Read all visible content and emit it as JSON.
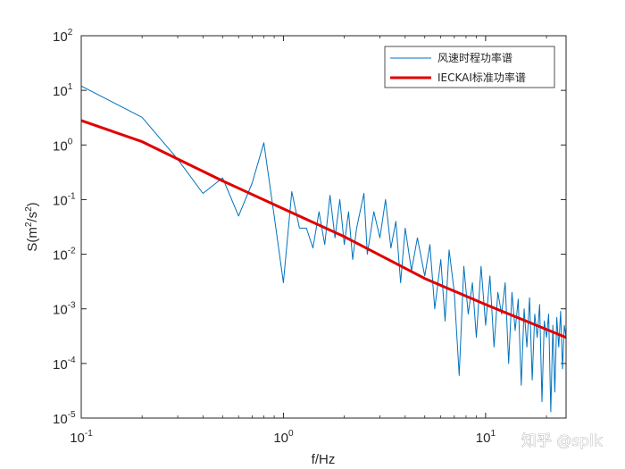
{
  "chart_data": {
    "type": "line",
    "scale": {
      "x": "log",
      "y": "log"
    },
    "xlabel": "f/Hz",
    "ylabel": "S(m2/s2)",
    "ylabel_parts": {
      "base": "S(m",
      "sup1": "2",
      "mid": "/s",
      "sup2": "2",
      "end": ")"
    },
    "xlim": [
      0.1,
      25
    ],
    "ylim": [
      1e-05,
      100
    ],
    "x_ticks": [
      {
        "value": 0.1,
        "base": "10",
        "exp": "-1"
      },
      {
        "value": 1,
        "base": "10",
        "exp": "0"
      },
      {
        "value": 10,
        "base": "10",
        "exp": "1"
      }
    ],
    "y_ticks": [
      {
        "value": 100,
        "base": "10",
        "exp": "2"
      },
      {
        "value": 10,
        "base": "10",
        "exp": "1"
      },
      {
        "value": 1,
        "base": "10",
        "exp": "0"
      },
      {
        "value": 0.1,
        "base": "10",
        "exp": "-1"
      },
      {
        "value": 0.01,
        "base": "10",
        "exp": "-2"
      },
      {
        "value": 0.001,
        "base": "10",
        "exp": "-3"
      },
      {
        "value": 0.0001,
        "base": "10",
        "exp": "-4"
      },
      {
        "value": 1e-05,
        "base": "10",
        "exp": "-5"
      }
    ],
    "legend_position": "top-right",
    "series": [
      {
        "name": "风速时程功率谱",
        "color": "#0072bd",
        "points": [
          [
            0.1,
            12
          ],
          [
            0.2,
            3.2
          ],
          [
            0.3,
            0.55
          ],
          [
            0.4,
            0.13
          ],
          [
            0.5,
            0.25
          ],
          [
            0.6,
            0.05
          ],
          [
            0.7,
            0.2
          ],
          [
            0.8,
            1.1
          ],
          [
            0.9,
            0.05
          ],
          [
            1.0,
            0.003
          ],
          [
            1.1,
            0.14
          ],
          [
            1.2,
            0.03
          ],
          [
            1.3,
            0.03
          ],
          [
            1.4,
            0.013
          ],
          [
            1.5,
            0.06
          ],
          [
            1.6,
            0.015
          ],
          [
            1.7,
            0.12
          ],
          [
            1.8,
            0.02
          ],
          [
            1.9,
            0.1
          ],
          [
            2.0,
            0.015
          ],
          [
            2.1,
            0.06
          ],
          [
            2.2,
            0.008
          ],
          [
            2.3,
            0.03
          ],
          [
            2.5,
            0.13
          ],
          [
            2.6,
            0.01
          ],
          [
            2.8,
            0.06
          ],
          [
            3.0,
            0.02
          ],
          [
            3.2,
            0.1
          ],
          [
            3.4,
            0.013
          ],
          [
            3.6,
            0.04
          ],
          [
            3.8,
            0.003
          ],
          [
            4.0,
            0.03
          ],
          [
            4.3,
            0.005
          ],
          [
            4.6,
            0.02
          ],
          [
            5.0,
            0.004
          ],
          [
            5.3,
            0.015
          ],
          [
            5.6,
            0.001
          ],
          [
            6.0,
            0.008
          ],
          [
            6.3,
            0.0006
          ],
          [
            6.6,
            0.012
          ],
          [
            7.0,
            0.002
          ],
          [
            7.4,
            6e-05
          ],
          [
            7.8,
            0.006
          ],
          [
            8.2,
            0.0008
          ],
          [
            8.6,
            0.003
          ],
          [
            9.0,
            0.0003
          ],
          [
            9.5,
            0.006
          ],
          [
            10.0,
            0.0005
          ],
          [
            10.5,
            0.004
          ],
          [
            11.0,
            0.0002
          ],
          [
            11.5,
            0.002
          ],
          [
            12.0,
            0.0008
          ],
          [
            12.5,
            0.003
          ],
          [
            13.0,
            0.0001
          ],
          [
            13.5,
            0.002
          ],
          [
            14.0,
            0.0004
          ],
          [
            14.5,
            0.0015
          ],
          [
            15.0,
            4e-05
          ],
          [
            15.5,
            0.001
          ],
          [
            16.0,
            0.0002
          ],
          [
            16.5,
            0.0016
          ],
          [
            17.0,
            5e-05
          ],
          [
            17.5,
            0.0008
          ],
          [
            18.0,
            0.0003
          ],
          [
            18.5,
            0.0012
          ],
          [
            19.0,
            2e-05
          ],
          [
            19.5,
            0.0006
          ],
          [
            20.0,
            0.0003
          ],
          [
            20.5,
            0.0008
          ],
          [
            21.0,
            1.3e-05
          ],
          [
            21.5,
            0.0005
          ],
          [
            22.0,
            3e-05
          ],
          [
            22.5,
            0.0007
          ],
          [
            23.0,
            0.0002
          ],
          [
            23.5,
            0.0009
          ],
          [
            24.0,
            8e-05
          ],
          [
            24.5,
            0.0005
          ],
          [
            25.0,
            0.0003
          ]
        ]
      },
      {
        "name": "IECKAI标准功率谱",
        "color": "#e00000",
        "points": [
          [
            0.1,
            2.8
          ],
          [
            0.2,
            1.15
          ],
          [
            0.5,
            0.22
          ],
          [
            1.0,
            0.068
          ],
          [
            2.0,
            0.021
          ],
          [
            5.0,
            0.0036
          ],
          [
            10.0,
            0.0012
          ],
          [
            25.0,
            0.0003
          ]
        ]
      }
    ]
  },
  "watermark": "知乎 @splk"
}
